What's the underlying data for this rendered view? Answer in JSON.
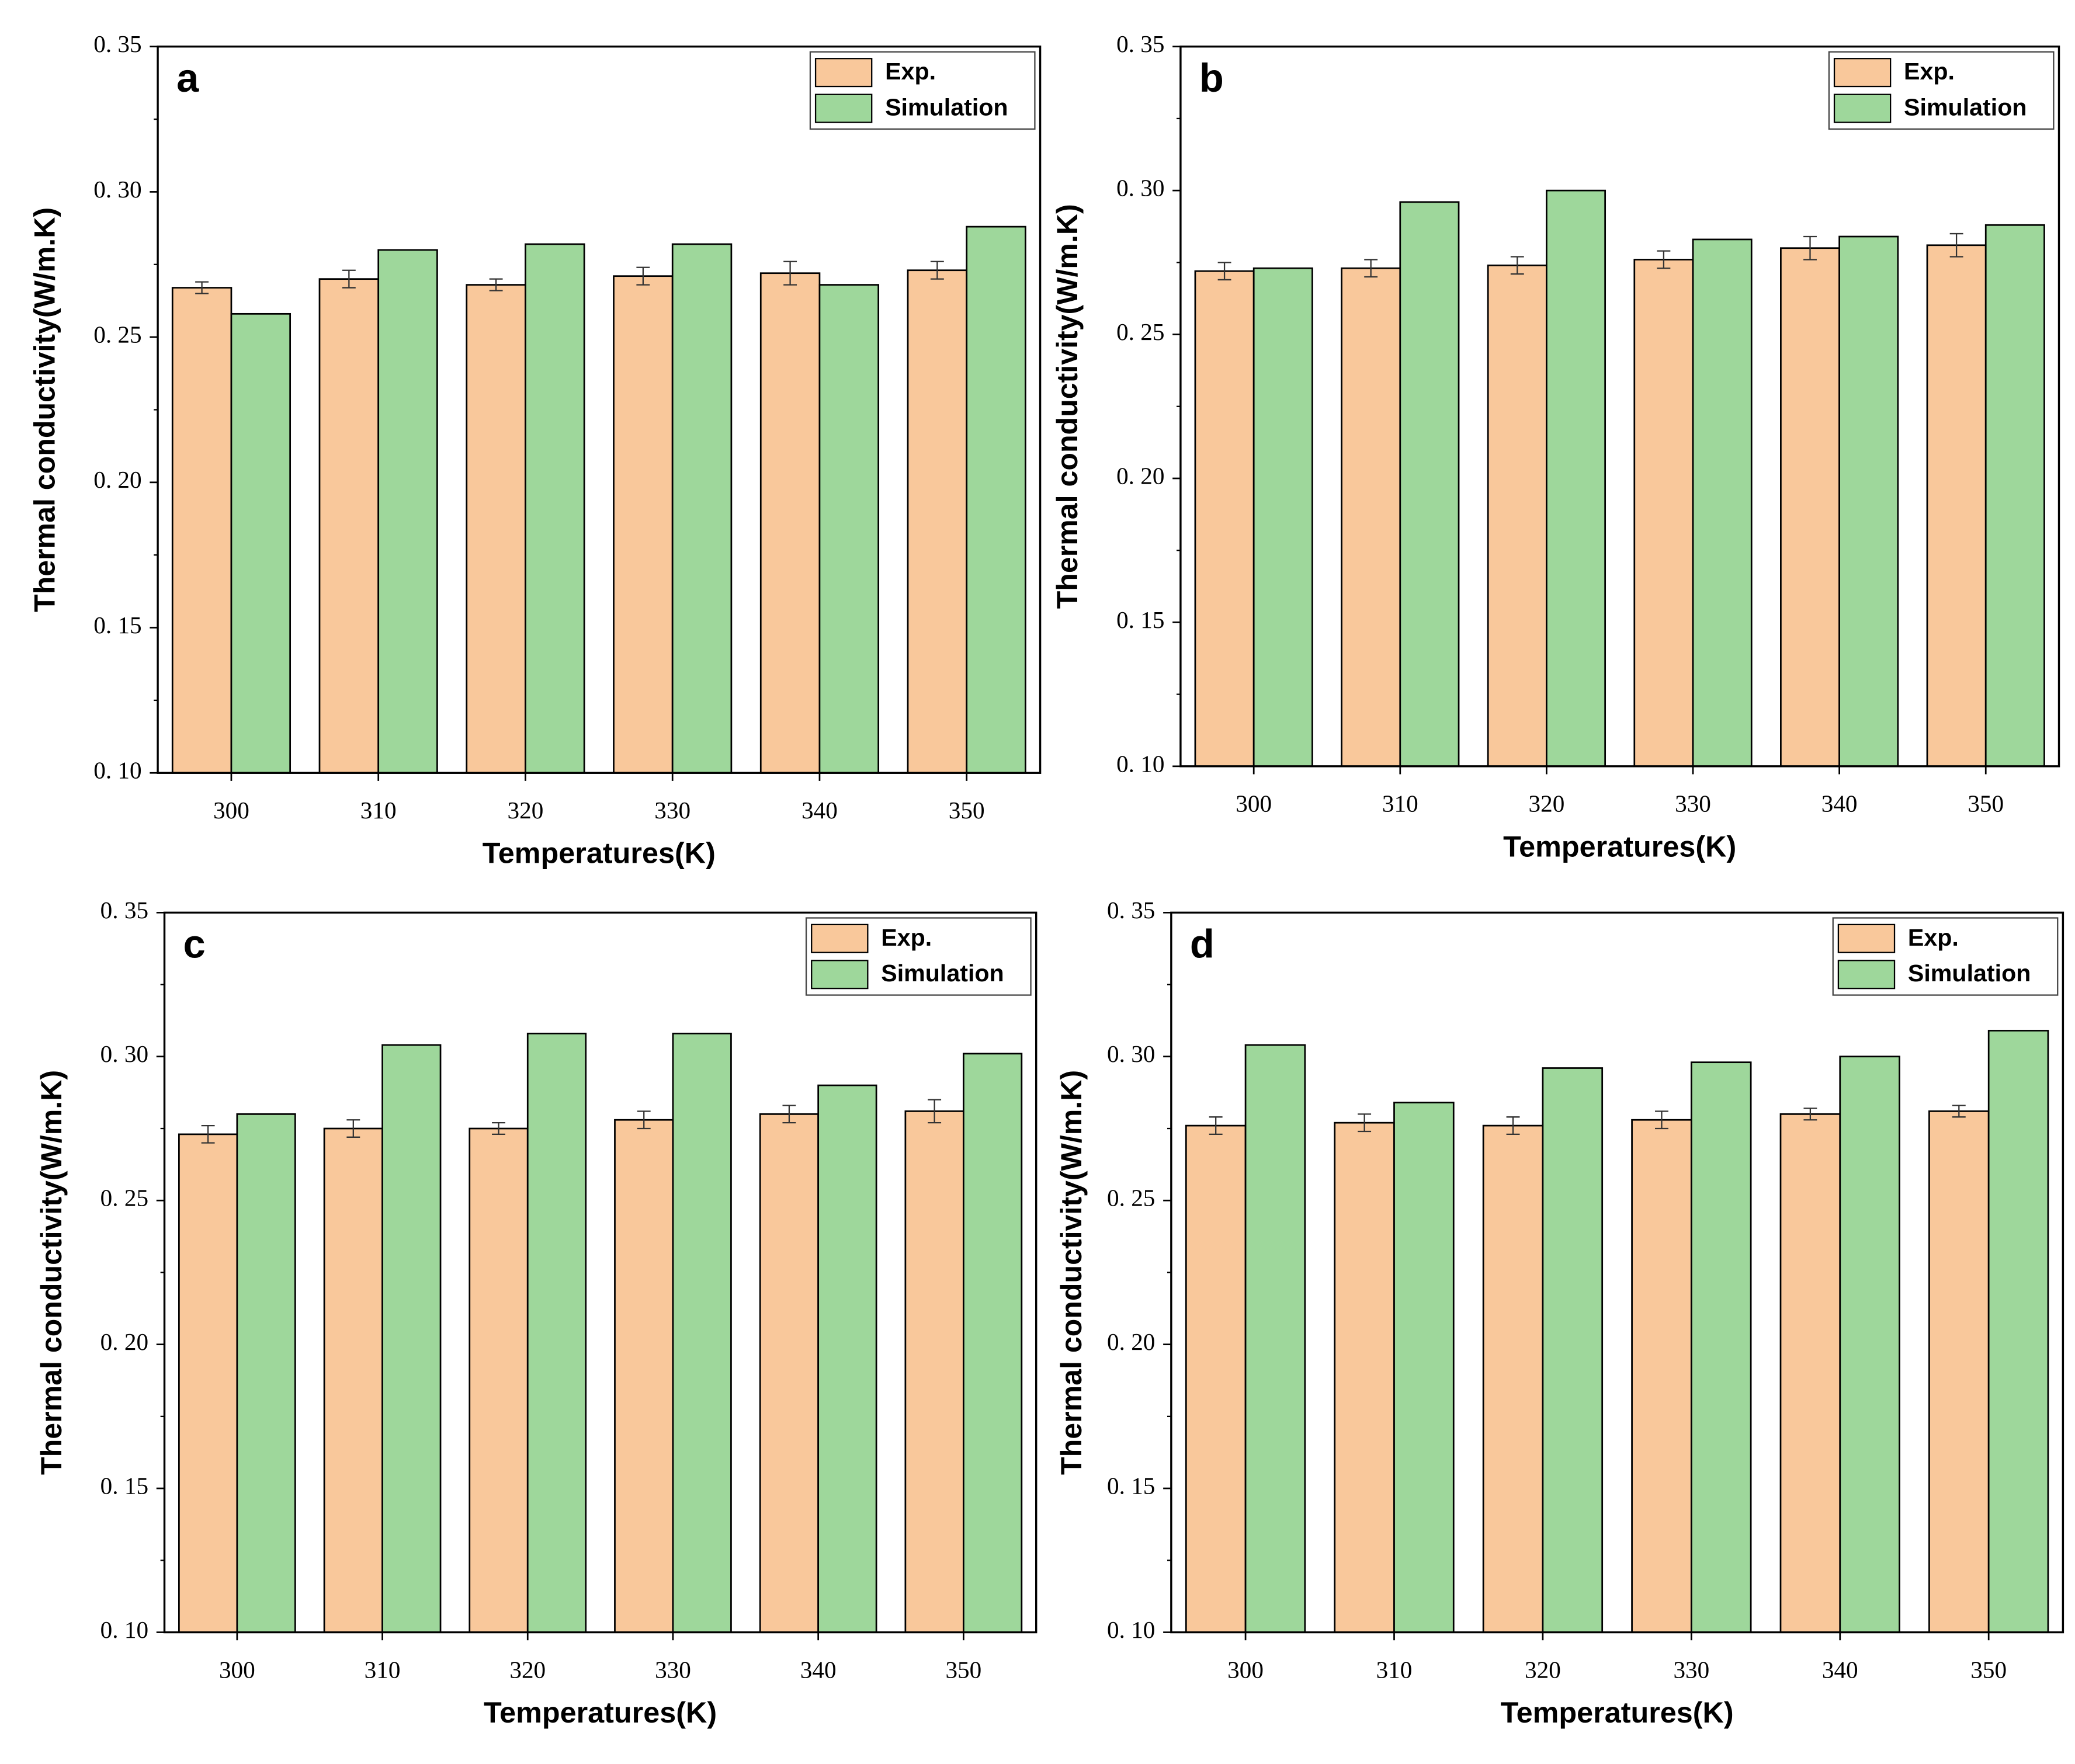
{
  "chart_data": [
    {
      "type": "bar",
      "panel": "a",
      "x_label": "Temperatures(K)",
      "y_label": "Thermal conductivity(W/m.K)",
      "categories": [
        "300",
        "310",
        "320",
        "330",
        "340",
        "350"
      ],
      "series": [
        {
          "name": "Exp.",
          "color": "#f9c89b",
          "values": [
            0.267,
            0.27,
            0.268,
            0.271,
            0.272,
            0.273
          ],
          "errors": [
            0.002,
            0.003,
            0.002,
            0.003,
            0.004,
            0.003
          ]
        },
        {
          "name": "Simulation",
          "color": "#9ed79b",
          "values": [
            0.258,
            0.28,
            0.282,
            0.282,
            0.268,
            0.288
          ]
        }
      ],
      "ylim": [
        0.1,
        0.35
      ],
      "yticks": [
        {
          "value": 0.1,
          "label": "0. 10"
        },
        {
          "value": 0.15,
          "label": "0. 15"
        },
        {
          "value": 0.2,
          "label": "0. 20"
        },
        {
          "value": 0.25,
          "label": "0. 25"
        },
        {
          "value": 0.3,
          "label": "0. 30"
        },
        {
          "value": 0.35,
          "label": "0. 35"
        }
      ],
      "legend": "upper right"
    },
    {
      "type": "bar",
      "panel": "b",
      "x_label": "Temperatures(K)",
      "y_label": "Thermal conductivity(W/m.K)",
      "categories": [
        "300",
        "310",
        "320",
        "330",
        "340",
        "350"
      ],
      "series": [
        {
          "name": "Exp.",
          "color": "#f9c89b",
          "values": [
            0.272,
            0.273,
            0.274,
            0.276,
            0.28,
            0.281
          ],
          "errors": [
            0.003,
            0.003,
            0.003,
            0.003,
            0.004,
            0.004
          ]
        },
        {
          "name": "Simulation",
          "color": "#9ed79b",
          "values": [
            0.273,
            0.296,
            0.3,
            0.283,
            0.284,
            0.288
          ]
        }
      ],
      "ylim": [
        0.1,
        0.35
      ],
      "yticks": [
        {
          "value": 0.1,
          "label": "0. 10"
        },
        {
          "value": 0.15,
          "label": "0. 15"
        },
        {
          "value": 0.2,
          "label": "0. 20"
        },
        {
          "value": 0.25,
          "label": "0. 25"
        },
        {
          "value": 0.3,
          "label": "0. 30"
        },
        {
          "value": 0.35,
          "label": "0. 35"
        }
      ],
      "legend": "upper right"
    },
    {
      "type": "bar",
      "panel": "c",
      "x_label": "Temperatures(K)",
      "y_label": "Thermal conductivity(W/m.K)",
      "categories": [
        "300",
        "310",
        "320",
        "330",
        "340",
        "350"
      ],
      "series": [
        {
          "name": "Exp.",
          "color": "#f9c89b",
          "values": [
            0.273,
            0.275,
            0.275,
            0.278,
            0.28,
            0.281
          ],
          "errors": [
            0.003,
            0.003,
            0.002,
            0.003,
            0.003,
            0.004
          ]
        },
        {
          "name": "Simulation",
          "color": "#9ed79b",
          "values": [
            0.28,
            0.304,
            0.308,
            0.308,
            0.29,
            0.301
          ]
        }
      ],
      "ylim": [
        0.1,
        0.35
      ],
      "yticks": [
        {
          "value": 0.1,
          "label": "0. 10"
        },
        {
          "value": 0.15,
          "label": "0. 15"
        },
        {
          "value": 0.2,
          "label": "0. 20"
        },
        {
          "value": 0.25,
          "label": "0. 25"
        },
        {
          "value": 0.3,
          "label": "0. 30"
        },
        {
          "value": 0.35,
          "label": "0. 35"
        }
      ],
      "legend": "upper right"
    },
    {
      "type": "bar",
      "panel": "d",
      "x_label": "Temperatures(K)",
      "y_label": "Thermal conductivity(W/m.K)",
      "categories": [
        "300",
        "310",
        "320",
        "330",
        "340",
        "350"
      ],
      "series": [
        {
          "name": "Exp.",
          "color": "#f9c89b",
          "values": [
            0.276,
            0.277,
            0.276,
            0.278,
            0.28,
            0.281
          ],
          "errors": [
            0.003,
            0.003,
            0.003,
            0.003,
            0.002,
            0.002
          ]
        },
        {
          "name": "Simulation",
          "color": "#9ed79b",
          "values": [
            0.304,
            0.284,
            0.296,
            0.298,
            0.3,
            0.309
          ]
        }
      ],
      "ylim": [
        0.1,
        0.35
      ],
      "yticks": [
        {
          "value": 0.1,
          "label": "0. 10"
        },
        {
          "value": 0.15,
          "label": "0. 15"
        },
        {
          "value": 0.2,
          "label": "0. 20"
        },
        {
          "value": 0.25,
          "label": "0. 25"
        },
        {
          "value": 0.3,
          "label": "0. 30"
        },
        {
          "value": 0.35,
          "label": "0. 35"
        }
      ],
      "legend": "upper right"
    }
  ]
}
